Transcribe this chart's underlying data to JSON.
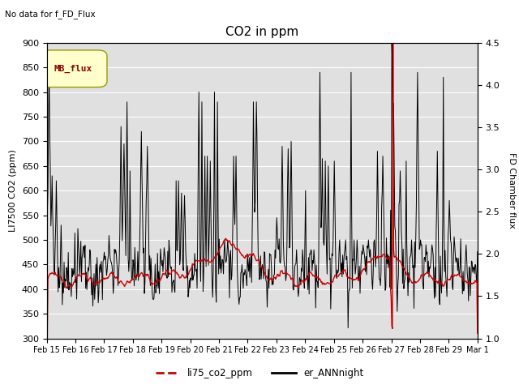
{
  "title": "CO2 in ppm",
  "no_data_text": "No data for f_FD_Flux",
  "ylabel_left": "LI7500 CO2 (ppm)",
  "ylabel_right": "FD Chamber flux",
  "ylim_left": [
    300,
    900
  ],
  "ylim_right": [
    1.0,
    4.5
  ],
  "yticks_left": [
    300,
    350,
    400,
    450,
    500,
    550,
    600,
    650,
    700,
    750,
    800,
    850,
    900
  ],
  "yticks_right": [
    1.0,
    1.5,
    2.0,
    2.5,
    3.0,
    3.5,
    4.0,
    4.5
  ],
  "xtick_labels": [
    "Feb 15",
    "Feb 16",
    "Feb 17",
    "Feb 18",
    "Feb 19",
    "Feb 20",
    "Feb 21",
    "Feb 22",
    "Feb 23",
    "Feb 24",
    "Feb 25",
    "Feb 26",
    "Feb 27",
    "Feb 28",
    "Feb 29",
    "Mar 1"
  ],
  "legend_label_red": "li75_co2_ppm",
  "legend_label_black": "er_ANNnight",
  "inset_label": "MB_flux",
  "bg_color": "#e0e0e0",
  "fig_bg": "#ffffff",
  "red_color": "#cc0000",
  "black_color": "#000000",
  "n_days": 15,
  "pts_per_day": 48
}
